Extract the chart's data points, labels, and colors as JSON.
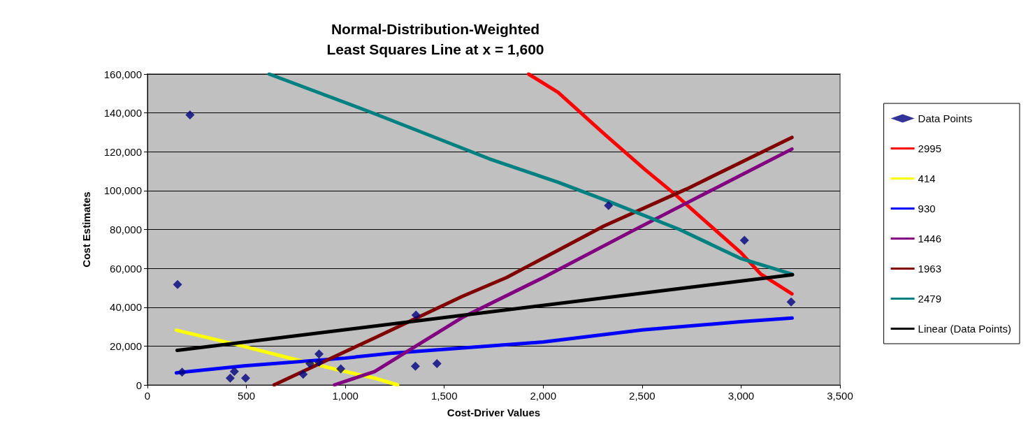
{
  "chart_data": {
    "type": "scatter",
    "title": "Normal-Distribution-Weighted\nLeast Squares Line at x = 1,600",
    "xlabel": "Cost-Driver Values",
    "ylabel": "Cost Estimates",
    "xlim": [
      0,
      3500
    ],
    "xticks": [
      0,
      500,
      {
        "value": 1000,
        "label": "1,000"
      },
      {
        "value": 1500,
        "label": "1,500"
      },
      {
        "value": 2000,
        "label": "2,000"
      },
      {
        "value": 2500,
        "label": "2,500"
      },
      {
        "value": 3000,
        "label": "3,000"
      },
      {
        "value": 3500,
        "label": "3,500"
      }
    ],
    "ylim": [
      0,
      160000
    ],
    "yticks": [
      0,
      {
        "value": 20000,
        "label": "20,000"
      },
      {
        "value": 40000,
        "label": "40,000"
      },
      {
        "value": 60000,
        "label": "60,000"
      },
      {
        "value": 80000,
        "label": "80,000"
      },
      {
        "value": 100000,
        "label": "100,000"
      },
      {
        "value": 120000,
        "label": "120,000"
      },
      {
        "value": 140000,
        "label": "140,000"
      },
      {
        "value": 160000,
        "label": "160,000"
      }
    ],
    "grid": "y",
    "legend": "right",
    "series": [
      {
        "name": "Data Points",
        "marker": "diamond",
        "color": "#000080",
        "x": [
          152,
          215,
          175,
          439,
          418,
          496,
          787,
          821,
          867,
          867,
          977,
          1357,
          1354,
          1463,
          2330,
          3017,
          3253
        ],
        "values": [
          51700,
          139000,
          6600,
          6900,
          3500,
          3500,
          5500,
          11000,
          15900,
          11700,
          8300,
          36000,
          9600,
          11000,
          92300,
          74400,
          42700
        ]
      },
      {
        "name": "2995",
        "type": "line",
        "marker": "none",
        "color": "#ff0000",
        "x": [
          1926,
          2075,
          2307,
          2515,
          2666,
          2793,
          3000,
          3100,
          3257
        ],
        "values": [
          160000,
          150600,
          129300,
          110800,
          98100,
          86600,
          68000,
          57000,
          46900
        ]
      },
      {
        "name": "414",
        "type": "line",
        "marker": "none",
        "color": "#ffff00",
        "x": [
          146,
          453,
          743,
          973,
          1148,
          1264
        ],
        "values": [
          28200,
          20700,
          13200,
          7500,
          3500,
          0
        ]
      },
      {
        "name": "930",
        "type": "line",
        "marker": "none",
        "color": "#0000ff",
        "x": [
          146,
          487,
          998,
          1241,
          2001,
          2501,
          2998,
          3258
        ],
        "values": [
          6200,
          9800,
          13800,
          16400,
          22100,
          28300,
          32500,
          34400
        ]
      },
      {
        "name": "1446",
        "type": "line",
        "marker": "none",
        "color": "#800080",
        "x": [
          945,
          1148,
          1589,
          2001,
          2457,
          2711,
          3257
        ],
        "values": [
          0,
          6900,
          34600,
          55300,
          79600,
          92900,
          121400
        ]
      },
      {
        "name": "1963",
        "type": "line",
        "marker": "none",
        "color": "#800000",
        "x": [
          640,
          1148,
          1589,
          1815,
          2307,
          2724,
          3257
        ],
        "values": [
          0,
          24200,
          45500,
          55300,
          81800,
          100800,
          127400
        ]
      },
      {
        "name": "2479",
        "type": "line",
        "marker": "none",
        "color": "#008080",
        "x": [
          615,
          1148,
          1727,
          2075,
          2329,
          2689,
          3000,
          3257
        ],
        "values": [
          160000,
          139600,
          116400,
          104300,
          94500,
          80000,
          65000,
          57000
        ]
      },
      {
        "name": "Linear (Data Points)",
        "type": "line",
        "marker": "none",
        "color": "#000000",
        "x": [
          150,
          3260
        ],
        "values": [
          17800,
          56700
        ]
      }
    ]
  }
}
